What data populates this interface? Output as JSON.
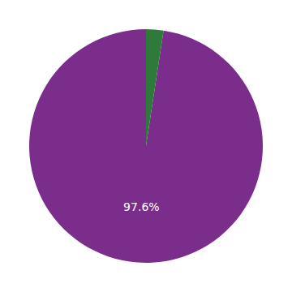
{
  "chart_data": {
    "type": "pie",
    "values": [
      97.6,
      2.4
    ],
    "colors": [
      "#7B2D8B",
      "#2D7A3A"
    ],
    "data_labels": true,
    "value_labels": [
      "97.6%",
      null
    ]
  }
}
